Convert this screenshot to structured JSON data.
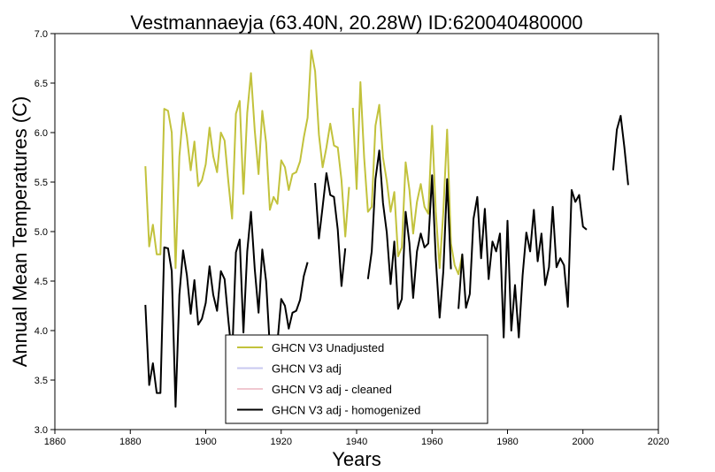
{
  "chart_data": {
    "type": "line",
    "title": "Vestmannaeyja (63.40N, 20.28W) ID:620040480000",
    "xlabel": "Years",
    "ylabel": "Annual Mean Temperatures (C)",
    "xlim": [
      1860,
      2020
    ],
    "ylim": [
      3.0,
      7.0
    ],
    "x_ticks": [
      1860,
      1880,
      1900,
      1920,
      1940,
      1960,
      1980,
      2000,
      2020
    ],
    "y_ticks": [
      3.0,
      3.5,
      4.0,
      4.5,
      5.0,
      5.5,
      6.0,
      6.5,
      7.0
    ],
    "legend_position": "bottom-center",
    "series": [
      {
        "name": "GHCN V3 Unadjusted",
        "color": "#c2c23c",
        "segments": [
          [
            [
              1884,
              5.66
            ],
            [
              1885,
              4.85
            ],
            [
              1886,
              5.07
            ],
            [
              1887,
              4.77
            ],
            [
              1888,
              4.77
            ],
            [
              1889,
              6.24
            ],
            [
              1890,
              6.22
            ],
            [
              1891,
              6.0
            ],
            [
              1892,
              4.63
            ],
            [
              1893,
              5.76
            ],
            [
              1894,
              6.2
            ],
            [
              1895,
              5.96
            ],
            [
              1896,
              5.62
            ],
            [
              1897,
              5.91
            ],
            [
              1898,
              5.46
            ],
            [
              1899,
              5.52
            ],
            [
              1900,
              5.68
            ],
            [
              1901,
              6.05
            ],
            [
              1902,
              5.76
            ],
            [
              1903,
              5.6
            ],
            [
              1904,
              6.0
            ],
            [
              1905,
              5.92
            ],
            [
              1906,
              5.5
            ],
            [
              1907,
              5.13
            ],
            [
              1908,
              6.19
            ],
            [
              1909,
              6.32
            ],
            [
              1910,
              5.38
            ],
            [
              1911,
              6.2
            ],
            [
              1912,
              6.6
            ],
            [
              1913,
              6.02
            ],
            [
              1914,
              5.58
            ],
            [
              1915,
              6.22
            ],
            [
              1916,
              5.9
            ],
            [
              1917,
              5.22
            ],
            [
              1918,
              5.35
            ],
            [
              1919,
              5.28
            ],
            [
              1920,
              5.72
            ],
            [
              1921,
              5.65
            ],
            [
              1922,
              5.42
            ],
            [
              1923,
              5.58
            ],
            [
              1924,
              5.6
            ],
            [
              1925,
              5.71
            ],
            [
              1926,
              5.95
            ],
            [
              1927,
              6.15
            ],
            [
              1928,
              6.83
            ],
            [
              1929,
              6.62
            ],
            [
              1930,
              5.98
            ],
            [
              1931,
              5.65
            ],
            [
              1932,
              5.85
            ],
            [
              1933,
              6.09
            ],
            [
              1934,
              5.87
            ],
            [
              1935,
              5.85
            ],
            [
              1936,
              5.52
            ],
            [
              1937,
              4.95
            ],
            [
              1938,
              5.45
            ]
          ],
          [
            [
              1939,
              6.25
            ],
            [
              1940,
              5.43
            ],
            [
              1941,
              6.51
            ],
            [
              1942,
              5.75
            ],
            [
              1943,
              5.2
            ],
            [
              1944,
              5.25
            ],
            [
              1945,
              6.07
            ],
            [
              1946,
              6.28
            ],
            [
              1947,
              5.75
            ],
            [
              1948,
              5.51
            ],
            [
              1949,
              5.2
            ],
            [
              1950,
              5.4
            ],
            [
              1951,
              4.75
            ],
            [
              1952,
              4.84
            ],
            [
              1953,
              5.7
            ],
            [
              1954,
              5.42
            ],
            [
              1955,
              4.98
            ],
            [
              1956,
              5.3
            ],
            [
              1957,
              5.48
            ],
            [
              1958,
              5.25
            ],
            [
              1959,
              5.18
            ],
            [
              1960,
              6.07
            ],
            [
              1961,
              5.2
            ],
            [
              1962,
              4.63
            ],
            [
              1963,
              5.2
            ],
            [
              1964,
              6.03
            ],
            [
              1965,
              4.88
            ],
            [
              1966,
              4.66
            ],
            [
              1967,
              4.57
            ],
            [
              1968,
              4.77
            ]
          ]
        ]
      },
      {
        "name": "GHCN V3 adj",
        "color": "#c8c8f0",
        "segments": []
      },
      {
        "name": "GHCN V3 adj - cleaned",
        "color": "#f0c8d0",
        "segments": []
      },
      {
        "name": "GHCN V3 adj - homogenized",
        "color": "#000000",
        "segments": [
          [
            [
              1884,
              4.26
            ],
            [
              1885,
              3.45
            ],
            [
              1886,
              3.67
            ],
            [
              1887,
              3.37
            ],
            [
              1888,
              3.37
            ],
            [
              1889,
              4.84
            ],
            [
              1890,
              4.83
            ],
            [
              1891,
              4.6
            ],
            [
              1892,
              3.23
            ],
            [
              1893,
              4.36
            ],
            [
              1894,
              4.81
            ],
            [
              1895,
              4.56
            ],
            [
              1896,
              4.17
            ],
            [
              1897,
              4.51
            ],
            [
              1898,
              4.06
            ],
            [
              1899,
              4.12
            ],
            [
              1900,
              4.28
            ],
            [
              1901,
              4.65
            ],
            [
              1902,
              4.36
            ],
            [
              1903,
              4.2
            ],
            [
              1904,
              4.6
            ],
            [
              1905,
              4.52
            ],
            [
              1906,
              4.1
            ],
            [
              1907,
              3.73
            ],
            [
              1908,
              4.79
            ],
            [
              1909,
              4.92
            ],
            [
              1910,
              3.98
            ],
            [
              1911,
              4.8
            ],
            [
              1912,
              5.2
            ],
            [
              1913,
              4.62
            ],
            [
              1914,
              4.18
            ],
            [
              1915,
              4.82
            ],
            [
              1916,
              4.5
            ],
            [
              1917,
              3.82
            ],
            [
              1918,
              3.95
            ],
            [
              1919,
              3.88
            ],
            [
              1920,
              4.32
            ],
            [
              1921,
              4.25
            ],
            [
              1922,
              4.02
            ],
            [
              1923,
              4.18
            ],
            [
              1924,
              4.2
            ],
            [
              1925,
              4.31
            ],
            [
              1926,
              4.55
            ],
            [
              1927,
              4.69
            ]
          ],
          [
            [
              1929,
              5.49
            ],
            [
              1930,
              4.93
            ],
            [
              1931,
              5.25
            ],
            [
              1932,
              5.59
            ],
            [
              1933,
              5.37
            ],
            [
              1934,
              5.35
            ],
            [
              1935,
              5.02
            ],
            [
              1936,
              4.45
            ],
            [
              1937,
              4.83
            ]
          ],
          [
            [
              1943,
              4.52
            ],
            [
              1944,
              4.8
            ],
            [
              1945,
              5.53
            ],
            [
              1946,
              5.82
            ],
            [
              1947,
              5.29
            ],
            [
              1948,
              4.99
            ],
            [
              1949,
              4.47
            ],
            [
              1950,
              4.9
            ],
            [
              1951,
              4.22
            ],
            [
              1952,
              4.32
            ],
            [
              1953,
              5.2
            ],
            [
              1954,
              4.88
            ],
            [
              1955,
              4.33
            ],
            [
              1956,
              4.8
            ],
            [
              1957,
              4.98
            ],
            [
              1958,
              4.84
            ],
            [
              1959,
              4.88
            ],
            [
              1960,
              5.57
            ],
            [
              1961,
              4.72
            ],
            [
              1962,
              4.13
            ],
            [
              1963,
              4.6
            ],
            [
              1964,
              5.53
            ],
            [
              1965,
              4.62
            ]
          ],
          [
            [
              1967,
              4.22
            ],
            [
              1968,
              4.77
            ],
            [
              1969,
              4.23
            ],
            [
              1970,
              4.37
            ],
            [
              1971,
              5.13
            ],
            [
              1972,
              5.35
            ],
            [
              1973,
              4.73
            ],
            [
              1974,
              5.23
            ],
            [
              1975,
              4.52
            ],
            [
              1976,
              4.9
            ],
            [
              1977,
              4.8
            ],
            [
              1978,
              4.98
            ],
            [
              1979,
              3.93
            ],
            [
              1980,
              5.11
            ],
            [
              1981,
              4.0
            ],
            [
              1982,
              4.46
            ],
            [
              1983,
              3.93
            ],
            [
              1984,
              4.56
            ],
            [
              1985,
              4.99
            ],
            [
              1986,
              4.8
            ],
            [
              1987,
              5.22
            ],
            [
              1988,
              4.7
            ],
            [
              1989,
              4.98
            ],
            [
              1990,
              4.46
            ],
            [
              1991,
              4.64
            ],
            [
              1992,
              5.25
            ],
            [
              1993,
              4.64
            ],
            [
              1994,
              4.73
            ],
            [
              1995,
              4.66
            ],
            [
              1996,
              4.24
            ],
            [
              1997,
              5.42
            ],
            [
              1998,
              5.3
            ],
            [
              1999,
              5.37
            ],
            [
              2000,
              5.05
            ],
            [
              2001,
              5.02
            ]
          ],
          [
            [
              2008,
              5.62
            ],
            [
              2009,
              6.03
            ],
            [
              2010,
              6.17
            ],
            [
              2011,
              5.85
            ],
            [
              2012,
              5.47
            ]
          ]
        ]
      }
    ]
  }
}
